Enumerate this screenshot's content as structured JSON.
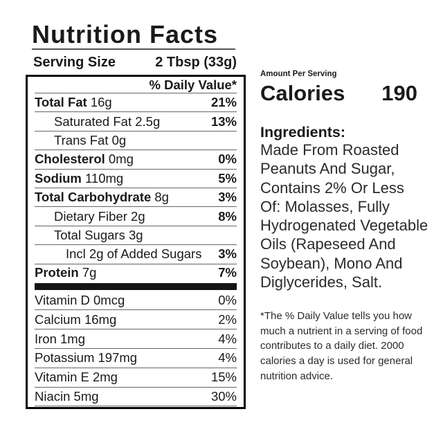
{
  "label": {
    "title": "Nutrition Facts",
    "serving_size_label": "Serving Size",
    "serving_size_value": "2 Tbsp (33g)",
    "daily_value_header": "% Daily Value*",
    "rows": [
      {
        "name": "Total Fat",
        "amount": " 16g",
        "pct": "21%",
        "bold_name": true,
        "indent": 0
      },
      {
        "name": "Saturated Fat",
        "amount": " 2.5g",
        "pct": "13%",
        "bold_name": false,
        "indent": 1
      },
      {
        "name": "Trans Fat",
        "amount": " 0g",
        "pct": "",
        "bold_name": false,
        "indent": 1
      },
      {
        "name": "Cholesterol",
        "amount": " 0mg",
        "pct": "0%",
        "bold_name": true,
        "indent": 0
      },
      {
        "name": "Sodium",
        "amount": " 110mg",
        "pct": "5%",
        "bold_name": true,
        "indent": 0
      },
      {
        "name": "Total Carbohydrate",
        "amount": " 8g",
        "pct": "3%",
        "bold_name": true,
        "indent": 0
      },
      {
        "name": "Dietary Fiber",
        "amount": " 2g",
        "pct": "8%",
        "bold_name": false,
        "indent": 1
      },
      {
        "name": "Total Sugars",
        "amount": " 3g",
        "pct": "",
        "bold_name": false,
        "indent": 1
      },
      {
        "name": "Incl 2g of Added Sugars",
        "amount": "",
        "pct": "3%",
        "bold_name": false,
        "indent": 2
      }
    ],
    "protein_row": {
      "name": "Protein",
      "amount": " 7g",
      "pct": "7%"
    },
    "vitamin_rows": [
      {
        "name": "Vitamin D 0mcg",
        "pct": "0%"
      },
      {
        "name": "Calcium 16mg",
        "pct": "2%"
      },
      {
        "name": "Iron 1mg",
        "pct": "4%"
      },
      {
        "name": "Potassium 197mg",
        "pct": "4%"
      },
      {
        "name": "Vitamin E 2mg",
        "pct": "15%"
      },
      {
        "name": "Niacin 5mg",
        "pct": "30%"
      }
    ]
  },
  "right_panel": {
    "amount_per_serving": "Amount Per Serving",
    "calories_label": "Calories",
    "calories_value": "190",
    "ingredients_heading": "Ingredients:",
    "ingredients_text": "Made From Roasted\nPeanuts And Sugar,\nContains 2% Or Less\nOf: Molasses, Fully\nHydrogenated Vegetable\nOils (Rapeseed And\nSoybean), Mono And\nDiglycerides, Salt.",
    "footnote": "*The % Daily Value tells you how\nmuch a nutrient in a serving of food\ncontributes to a daily diet. 2000\ncalories a day is used for general\nnutrition advice."
  }
}
